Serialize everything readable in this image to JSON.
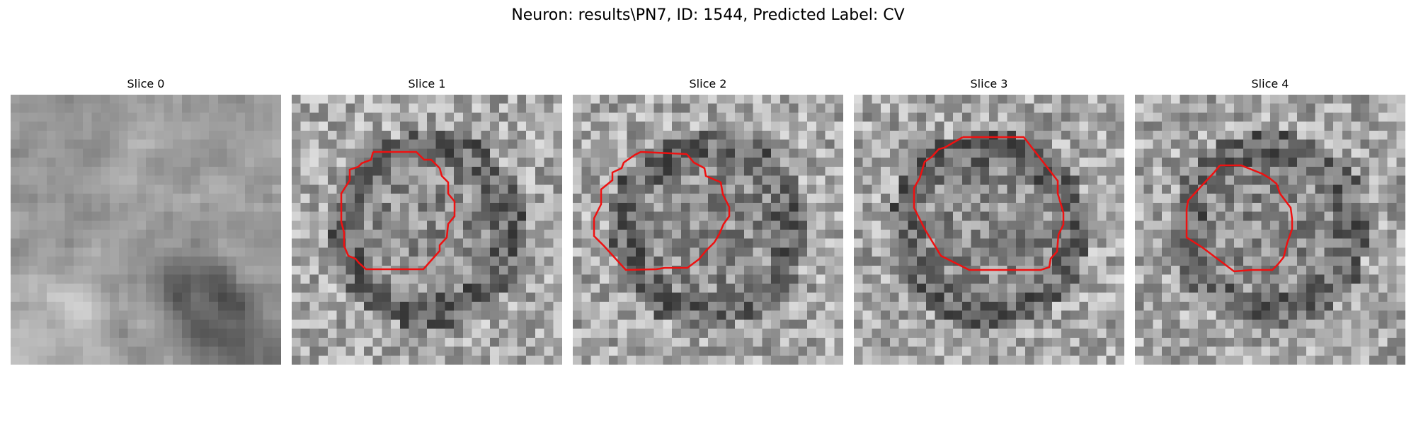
{
  "figure": {
    "title": "Neuron: results\\PN7, ID: 1544, Predicted Label: CV"
  },
  "panels": [
    {
      "title": "Slice 0",
      "has_contour": false,
      "pattern": "diagonal-band"
    },
    {
      "title": "Slice 1",
      "has_contour": true,
      "pattern": "ring"
    },
    {
      "title": "Slice 2",
      "has_contour": true,
      "pattern": "ring"
    },
    {
      "title": "Slice 3",
      "has_contour": true,
      "pattern": "ring"
    },
    {
      "title": "Slice 4",
      "has_contour": true,
      "pattern": "ring"
    }
  ],
  "colors": {
    "contour": "#ee1111",
    "background": "#ffffff"
  }
}
